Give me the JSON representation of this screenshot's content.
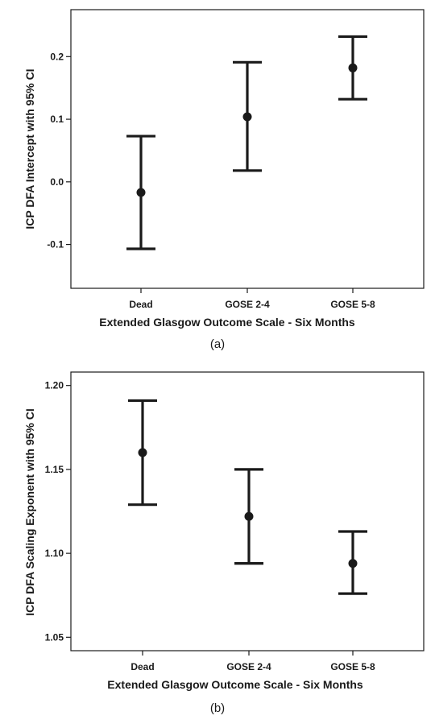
{
  "chart_data": [
    {
      "type": "errorbar",
      "panel_label": "(a)",
      "xlabel": "Extended Glasgow Outcome Scale - Six Months",
      "ylabel": "ICP DFA Intercept with 95% CI",
      "categories": [
        "Dead",
        "GOSE 2-4",
        "GOSE 5-8"
      ],
      "series": [
        {
          "mean": [
            -0.017,
            0.104,
            0.182
          ],
          "lower": [
            -0.107,
            0.018,
            0.132
          ],
          "upper": [
            0.073,
            0.191,
            0.232
          ]
        }
      ],
      "ylim": [
        -0.17,
        0.275
      ],
      "yticks": [
        -0.1,
        0.0,
        0.1,
        0.2
      ],
      "ytick_labels": [
        "-0.1",
        "0.0",
        "0.1",
        "0.2"
      ],
      "grid": false
    },
    {
      "type": "errorbar",
      "panel_label": "(b)",
      "xlabel": "Extended Glasgow Outcome Scale - Six Months",
      "ylabel": "ICP DFA Scaling Exponent with 95% CI",
      "categories": [
        "Dead",
        "GOSE 2-4",
        "GOSE 5-8"
      ],
      "series": [
        {
          "mean": [
            1.16,
            1.122,
            1.094
          ],
          "lower": [
            1.129,
            1.094,
            1.076
          ],
          "upper": [
            1.191,
            1.15,
            1.113
          ]
        }
      ],
      "ylim": [
        1.042,
        1.208
      ],
      "yticks": [
        1.05,
        1.1,
        1.15,
        1.2
      ],
      "ytick_labels": [
        "1.05",
        "1.10",
        "1.15",
        "1.20"
      ],
      "grid": false
    }
  ]
}
